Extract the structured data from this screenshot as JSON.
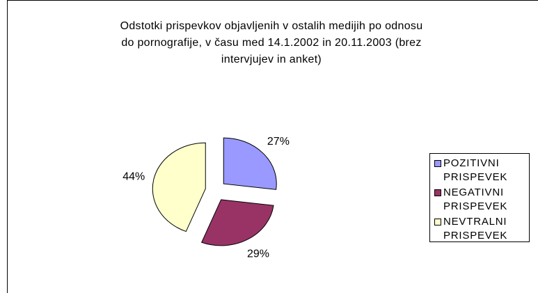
{
  "chart_data": {
    "type": "pie",
    "title": "Odstotki prispevkov objavljenih v ostalih medijih po odnosu do pornografije, v času med 14.1.2002 in 20.11.2003 (brez intervjujev in anket)",
    "categories": [
      "POZITIVNI PRISPEVEK",
      "NEGATIVNI PRISPEVEK",
      "NEVTRALNI PRISPEVEK"
    ],
    "values": [
      27,
      29,
      44
    ],
    "value_labels": [
      "27%",
      "29%",
      "44%"
    ],
    "colors": [
      "#9999ff",
      "#993366",
      "#ffffcc"
    ],
    "legend": "right"
  }
}
